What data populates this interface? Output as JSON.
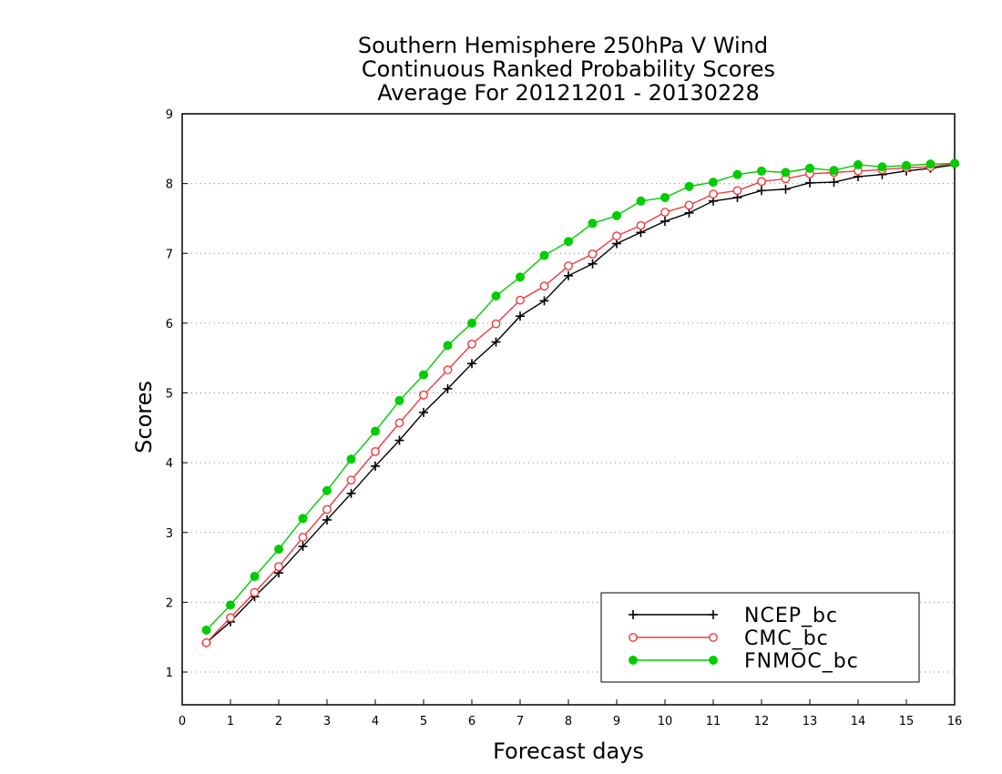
{
  "chart_data": {
    "type": "line",
    "title": [
      "Southern Hemisphere 250hPa V Wind",
      "Continuous Ranked Probability Scores",
      "Average For 20121201 - 20130228"
    ],
    "xlabel": "Forecast days",
    "ylabel": "Scores",
    "xlim": [
      0,
      16
    ],
    "ylim": [
      0.5,
      9
    ],
    "xticks": [
      0,
      1,
      2,
      3,
      4,
      5,
      6,
      7,
      8,
      9,
      10,
      11,
      12,
      13,
      14,
      15,
      16
    ],
    "yticks": [
      1,
      2,
      3,
      4,
      5,
      6,
      7,
      8,
      9
    ],
    "grid": "horizontal dotted",
    "legend_position": "bottom-right",
    "x": [
      0.5,
      1,
      1.5,
      2,
      2.5,
      3,
      3.5,
      4,
      4.5,
      5,
      5.5,
      6,
      6.5,
      7,
      7.5,
      8,
      8.5,
      9,
      9.5,
      10,
      10.5,
      11,
      11.5,
      12,
      12.5,
      13,
      13.5,
      14,
      14.5,
      15,
      15.5,
      16
    ],
    "series": [
      {
        "name": "NCEP_bc",
        "color": "#000000",
        "marker": "plus",
        "values": [
          1.42,
          1.72,
          2.08,
          2.42,
          2.8,
          3.18,
          3.56,
          3.95,
          4.32,
          4.72,
          5.06,
          5.42,
          5.73,
          6.1,
          6.32,
          6.68,
          6.85,
          7.14,
          7.3,
          7.46,
          7.58,
          7.75,
          7.8,
          7.9,
          7.92,
          8.01,
          8.02,
          8.1,
          8.13,
          8.18,
          8.22,
          8.27
        ]
      },
      {
        "name": "CMC_bc",
        "color": "#ee3b3b",
        "marker": "open-circle",
        "values": [
          1.42,
          1.78,
          2.14,
          2.51,
          2.93,
          3.33,
          3.75,
          4.16,
          4.57,
          4.97,
          5.33,
          5.7,
          5.99,
          6.33,
          6.53,
          6.82,
          6.99,
          7.25,
          7.4,
          7.59,
          7.69,
          7.85,
          7.9,
          8.03,
          8.07,
          8.14,
          8.16,
          8.18,
          8.2,
          8.23,
          8.24,
          8.29
        ]
      },
      {
        "name": "FNMOC_bc",
        "color": "#00cc00",
        "marker": "filled-circle",
        "values": [
          1.6,
          1.96,
          2.37,
          2.76,
          3.2,
          3.6,
          4.05,
          4.45,
          4.89,
          5.26,
          5.68,
          6.0,
          6.39,
          6.66,
          6.97,
          7.17,
          7.43,
          7.54,
          7.75,
          7.8,
          7.96,
          8.02,
          8.13,
          8.18,
          8.16,
          8.22,
          8.19,
          8.27,
          8.24,
          8.26,
          8.28,
          8.29
        ]
      }
    ]
  }
}
